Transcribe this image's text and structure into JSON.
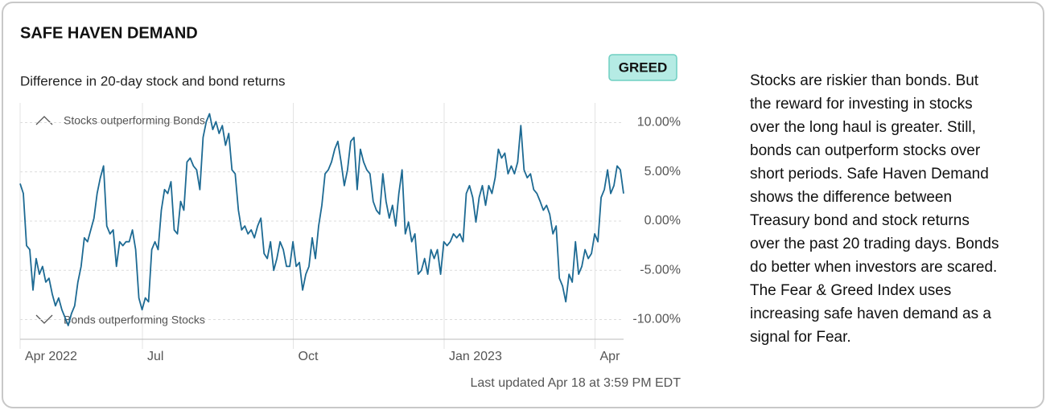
{
  "header": {
    "title": "SAFE HAVEN DEMAND",
    "badge": "GREED"
  },
  "description": [
    "Stocks are riskier than bonds. But",
    "the reward for investing in stocks",
    "over the long haul is greater. Still,",
    "bonds can outperform stocks over",
    "short periods. Safe Haven Demand",
    "shows the difference between",
    "Treasury bond and stock returns",
    "over the past 20 trading days. Bonds",
    "do better when investors are scared.",
    "The Fear & Greed Index uses",
    "increasing safe haven demand as a",
    "signal for Fear."
  ],
  "updated": "Last updated Apr 18 at 3:59 PM EDT",
  "chart_data": {
    "type": "line",
    "title": "Difference in 20-day stock and bond returns",
    "annotations": [
      "Stocks outperforming Bonds",
      "Bonds outperforming Stocks"
    ],
    "color": "#1d6a93",
    "values": [
      3.8,
      2.8,
      -2.5,
      -2.9,
      -7.0,
      -3.8,
      -5.4,
      -4.6,
      -6.2,
      -5.8,
      -7.4,
      -8.6,
      -7.8,
      -9.0,
      -9.8,
      -10.6,
      -9.4,
      -8.6,
      -6.2,
      -4.6,
      -1.7,
      -2.1,
      -0.9,
      0.3,
      2.8,
      4.4,
      5.6,
      -0.5,
      -1.3,
      -0.9,
      -4.6,
      -2.1,
      -2.5,
      -2.1,
      -2.1,
      -0.9,
      -2.9,
      -7.8,
      -9.0,
      -7.8,
      -8.2,
      -2.9,
      -2.1,
      -2.9,
      1.1,
      3.2,
      2.8,
      4.0,
      -0.9,
      -1.3,
      2.0,
      1.1,
      6.0,
      6.4,
      5.6,
      5.2,
      3.2,
      8.5,
      10.1,
      10.9,
      9.3,
      10.1,
      8.9,
      9.7,
      7.7,
      8.9,
      5.2,
      4.8,
      1.1,
      -0.9,
      -0.5,
      -1.3,
      -0.9,
      -1.7,
      -0.5,
      0.3,
      -3.3,
      -3.8,
      -2.1,
      -5.0,
      -3.8,
      -2.1,
      -2.9,
      -4.6,
      -4.6,
      -2.1,
      -4.6,
      -4.2,
      -7.0,
      -5.4,
      -4.6,
      -1.7,
      -3.8,
      -0.5,
      1.6,
      4.8,
      5.2,
      6.0,
      7.3,
      8.1,
      6.0,
      3.6,
      5.2,
      8.1,
      8.5,
      3.2,
      7.3,
      6.0,
      5.2,
      4.8,
      2.0,
      1.1,
      0.7,
      4.8,
      2.0,
      0.3,
      1.6,
      -0.5,
      2.8,
      5.2,
      -1.3,
      -0.1,
      -2.1,
      -1.3,
      -5.4,
      -5.0,
      -3.8,
      -5.4,
      -2.9,
      -3.8,
      -2.9,
      -5.4,
      -2.1,
      -2.5,
      -2.1,
      -1.3,
      -1.7,
      -1.3,
      -2.1,
      2.8,
      3.6,
      2.4,
      -0.1,
      2.4,
      3.6,
      1.6,
      3.6,
      2.8,
      4.4,
      7.3,
      6.4,
      6.9,
      4.8,
      5.6,
      4.8,
      6.0,
      9.7,
      5.2,
      4.4,
      4.8,
      3.2,
      2.8,
      2.0,
      1.1,
      1.6,
      0.7,
      -1.3,
      -0.5,
      -5.8,
      -6.6,
      -8.2,
      -5.4,
      -6.2,
      -2.1,
      -5.4,
      -4.6,
      -2.9,
      -3.8,
      -3.3,
      -1.3,
      -2.1,
      2.4,
      3.2,
      5.2,
      2.8,
      3.6,
      5.6,
      5.2,
      2.8
    ],
    "ylim": [
      -12,
      12
    ],
    "yticks": [
      {
        "value": 10,
        "label": "10.00%"
      },
      {
        "value": 5,
        "label": "5.00%"
      },
      {
        "value": 0,
        "label": "0.00%"
      },
      {
        "value": -5,
        "label": "-5.00%"
      },
      {
        "value": -10,
        "label": "-10.00%"
      }
    ],
    "xticks": [
      {
        "value": "2022-04",
        "label": "Apr 2022"
      },
      {
        "value": "2022-07",
        "label": "Jul"
      },
      {
        "value": "2022-10",
        "label": "Oct"
      },
      {
        "value": "2023-01",
        "label": "Jan 2023"
      },
      {
        "value": "2023-04",
        "label": "Apr"
      }
    ],
    "grid": true
  }
}
